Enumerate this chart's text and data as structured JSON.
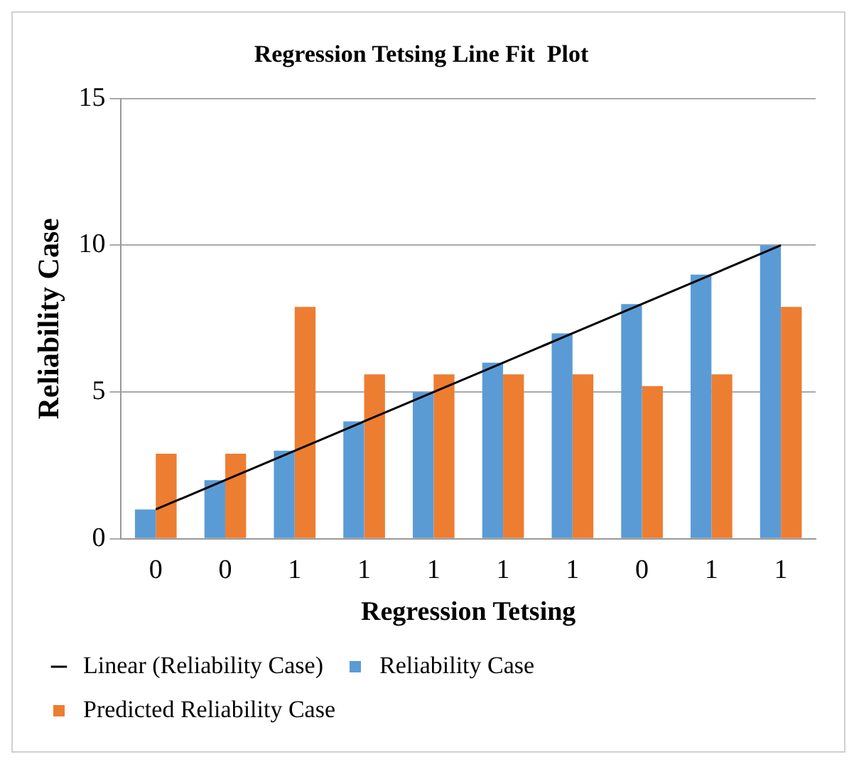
{
  "chart_data": {
    "type": "bar",
    "title": "Regression Tetsing Line Fit  Plot",
    "xlabel": "Regression Tetsing",
    "ylabel": "Reliability Case",
    "categories": [
      "0",
      "0",
      "1",
      "1",
      "1",
      "1",
      "1",
      "0",
      "1",
      "1"
    ],
    "series": [
      {
        "name": "Reliability Case",
        "color": "#5b9bd5",
        "values": [
          1,
          2,
          3,
          4,
          5,
          6,
          7,
          8,
          9,
          10
        ]
      },
      {
        "name": "Predicted Reliability Case",
        "color": "#ed7d31",
        "values": [
          2.9,
          2.9,
          7.9,
          5.6,
          5.6,
          5.6,
          5.6,
          5.2,
          5.6,
          7.9
        ]
      },
      {
        "name": "Linear (Reliability Case)",
        "type": "line",
        "color": "#000000",
        "values": [
          1,
          2,
          3,
          4,
          5,
          6,
          7,
          8,
          9,
          10
        ]
      }
    ],
    "ylim": [
      0,
      15
    ],
    "yticks": [
      0,
      5,
      10,
      15
    ],
    "grid": "y",
    "legend": "bottom",
    "marker": "none",
    "line_style": "solid"
  }
}
